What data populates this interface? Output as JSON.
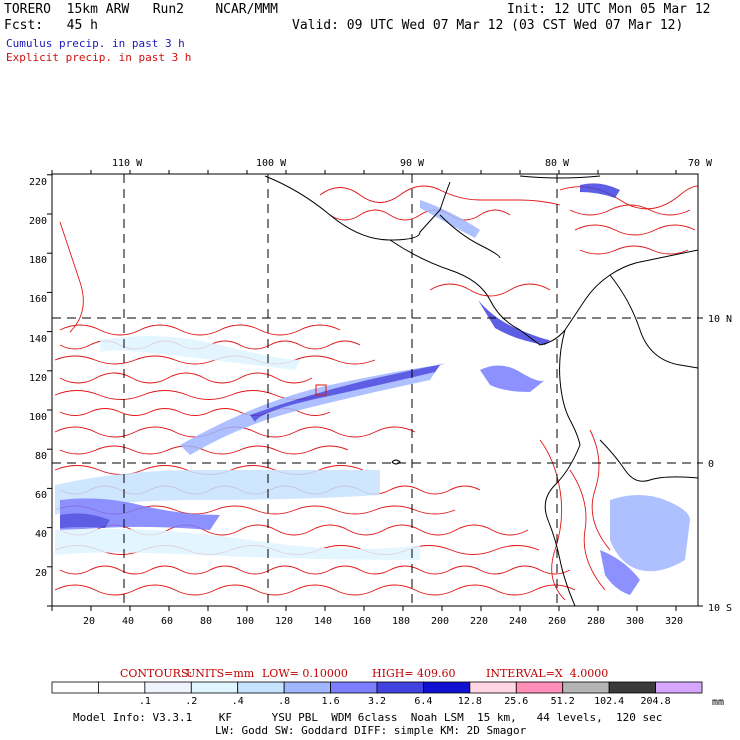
{
  "header": {
    "line1_left": "TORERO  15km ARW   Run2    NCAR/MMM",
    "line1_right": "Init: 12 UTC Mon 05 Mar 12",
    "line2_left": "Fcst:   45 h",
    "line2_right": "Valid: 09 UTC Wed 07 Mar 12 (03 CST Wed 07 Mar 12)",
    "legend_cumulus": "Cumulus precip. in past 3 h",
    "legend_explicit": "Explicit precip. in past 3 h"
  },
  "axes": {
    "top_lon": [
      "110 W",
      "100 W",
      "90 W",
      "80 W",
      "70 W"
    ],
    "right_lat": [
      "10 N",
      "0",
      "10 S"
    ],
    "left_ticks": [
      "220",
      "200",
      "180",
      "160",
      "140",
      "120",
      "100",
      "80",
      "60",
      "40",
      "20"
    ],
    "bottom_ticks": [
      "20",
      "40",
      "60",
      "80",
      "100",
      "120",
      "140",
      "160",
      "180",
      "200",
      "220",
      "240",
      "260",
      "280",
      "300",
      "320"
    ]
  },
  "contours": {
    "label": "CONTOURS:",
    "units": "UNITS=mm",
    "low": "LOW= 0.10000",
    "high": "HIGH= 409.60",
    "interval": "INTERVAL=X  4.0000"
  },
  "colorbar": {
    "labels": [
      ".1",
      ".2",
      ".4",
      ".8",
      "1.6",
      "3.2",
      "6.4",
      "12.8",
      "25.6",
      "51.2",
      "102.4",
      "204.8"
    ],
    "unit": "mm",
    "colors": [
      "#ffffff",
      "#ffffff",
      "#f0f4ff",
      "#dff5ff",
      "#c6e3ff",
      "#a0b6ff",
      "#7a7eff",
      "#4242e0",
      "#1010d0",
      "#ffd6e2",
      "#ff8fb8",
      "#b4b4b4",
      "#3a3a3a",
      "#d7a6ff"
    ]
  },
  "footer": {
    "line1": "Model Info: V3.3.1    KF      YSU PBL  WDM 6class  Noah LSM  15 km,   44 levels,  120 sec",
    "line2": "LW: Godd SW: Goddard DIFF: simple KM: 2D Smagor"
  }
}
